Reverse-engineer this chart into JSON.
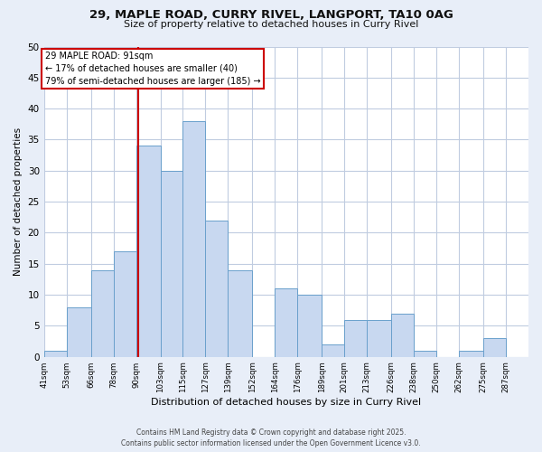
{
  "title": "29, MAPLE ROAD, CURRY RIVEL, LANGPORT, TA10 0AG",
  "subtitle": "Size of property relative to detached houses in Curry Rivel",
  "xlabel": "Distribution of detached houses by size in Curry Rivel",
  "ylabel": "Number of detached properties",
  "footer_line1": "Contains HM Land Registry data © Crown copyright and database right 2025.",
  "footer_line2": "Contains public sector information licensed under the Open Government Licence v3.0.",
  "bin_labels": [
    "41sqm",
    "53sqm",
    "66sqm",
    "78sqm",
    "90sqm",
    "103sqm",
    "115sqm",
    "127sqm",
    "139sqm",
    "152sqm",
    "164sqm",
    "176sqm",
    "189sqm",
    "201sqm",
    "213sqm",
    "226sqm",
    "238sqm",
    "250sqm",
    "262sqm",
    "275sqm",
    "287sqm"
  ],
  "bin_edges": [
    41,
    53,
    66,
    78,
    90,
    103,
    115,
    127,
    139,
    152,
    164,
    176,
    189,
    201,
    213,
    226,
    238,
    250,
    262,
    275,
    287
  ],
  "bar_heights": [
    1,
    8,
    14,
    17,
    34,
    30,
    38,
    22,
    14,
    0,
    11,
    10,
    2,
    6,
    6,
    7,
    1,
    0,
    1,
    3,
    0
  ],
  "bar_color": "#c8d8f0",
  "bar_edgecolor": "#6aa0cc",
  "property_size": 91,
  "property_label": "29 MAPLE ROAD: 91sqm",
  "annotation_line1": "← 17% of detached houses are smaller (40)",
  "annotation_line2": "79% of semi-detached houses are larger (185) →",
  "vline_color": "#cc0000",
  "ylim": [
    0,
    50
  ],
  "yticks": [
    0,
    5,
    10,
    15,
    20,
    25,
    30,
    35,
    40,
    45,
    50
  ],
  "background_color": "#e8eef8",
  "plot_bg_color": "#ffffff",
  "grid_color": "#c0cce0"
}
